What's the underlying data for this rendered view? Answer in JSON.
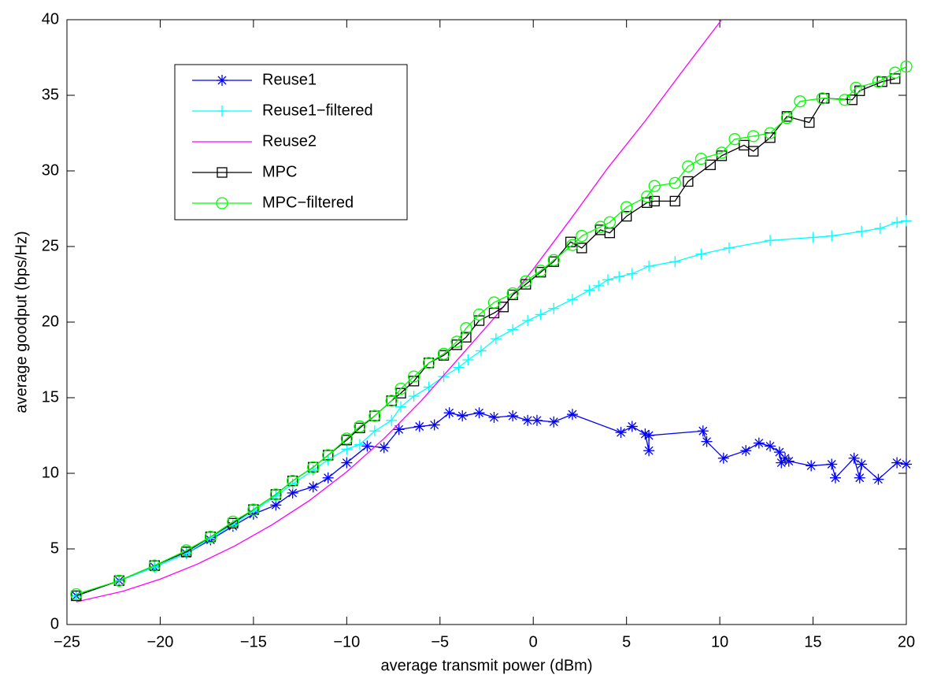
{
  "chart_data": {
    "type": "line",
    "x_label": "average transmit power (dBm)",
    "y_label": "average goodput (bps/Hz)",
    "xlim": [
      -25,
      20
    ],
    "ylim": [
      0,
      40
    ],
    "xticks": [
      {
        "value": -25,
        "label": "−25"
      },
      {
        "value": -20,
        "label": "−20"
      },
      {
        "value": -15,
        "label": "−15"
      },
      {
        "value": -10,
        "label": "−10"
      },
      {
        "value": -5,
        "label": "−5"
      },
      0,
      5,
      10,
      15,
      20
    ],
    "yticks": [
      0,
      5,
      10,
      15,
      20,
      25,
      30,
      35,
      40
    ],
    "grid": false,
    "legend": "upper left",
    "series": [
      {
        "name": "Reuse1",
        "color": "#0000ff",
        "marker": "star",
        "x": [
          -24.5,
          -22.2,
          -20.3,
          -18.6,
          -17.3,
          -16.1,
          -15,
          -13.8,
          -12.9,
          -11.8,
          -11,
          -10,
          -8.9,
          -8,
          -7.2,
          -6.1,
          -5.3,
          -4.5,
          -3.8,
          -2.9,
          -2.1,
          -1.1,
          -0.3,
          0.2,
          1.1,
          2.1,
          4.7,
          5.3,
          6.0,
          6.2,
          6.2,
          9.1,
          9.3,
          10.2,
          11.4,
          12.1,
          12.7,
          13.2,
          13.3,
          13.5,
          13.7,
          14.9,
          16.0,
          16.2,
          17.2,
          17.5,
          17.6,
          18.5,
          19.5,
          20
        ],
        "values": [
          1.9,
          2.9,
          3.8,
          4.7,
          5.6,
          6.5,
          7.3,
          7.9,
          8.7,
          9.1,
          9.7,
          10.7,
          11.8,
          11.7,
          12.9,
          13.1,
          13.2,
          14.0,
          13.8,
          14.0,
          13.7,
          13.8,
          13.5,
          13.5,
          13.4,
          13.9,
          12.7,
          13.1,
          12.6,
          11.5,
          12.5,
          12.8,
          12.1,
          11.0,
          11.5,
          12.0,
          11.8,
          11.4,
          10.7,
          11.0,
          10.8,
          10.5,
          10.6,
          9.7,
          11.0,
          9.7,
          10.6,
          9.6,
          10.7,
          10.6
        ]
      },
      {
        "name": "Reuse1−filtered",
        "color": "#00ffff",
        "marker": "plus",
        "x": [
          -24.5,
          -22.2,
          -20.3,
          -18.6,
          -17.3,
          -16.1,
          -15,
          -13.8,
          -12.9,
          -11.8,
          -11,
          -10,
          -9.3,
          -8.5,
          -7.6,
          -7.1,
          -6.4,
          -5.6,
          -4.8,
          -4,
          -3.5,
          -2.8,
          -2.0,
          -1.1,
          -0.3,
          0.4,
          1.1,
          2.1,
          3,
          3.5,
          4,
          4.6,
          5.3,
          6.2,
          7.6,
          9,
          10.5,
          12.7,
          15,
          16,
          17.6,
          18.6,
          19.5,
          20
        ],
        "values": [
          1.9,
          2.9,
          3.8,
          4.7,
          5.7,
          6.6,
          7.5,
          8.5,
          9.3,
          10.2,
          10.9,
          11.6,
          11.9,
          12.8,
          13.5,
          14.4,
          15.1,
          15.7,
          16.4,
          17.0,
          17.5,
          18.1,
          18.9,
          19.5,
          20.1,
          20.5,
          20.9,
          21.5,
          22.1,
          22.4,
          22.8,
          23.0,
          23.2,
          23.7,
          24.0,
          24.5,
          24.9,
          25.4,
          25.6,
          25.7,
          26.0,
          26.2,
          26.6,
          26.7
        ]
      },
      {
        "name": "Reuse2",
        "color": "#ff00ff",
        "marker": "none",
        "x": [
          -24.5,
          -22,
          -20,
          -18,
          -16,
          -14,
          -12,
          -10,
          -8,
          -6,
          -4,
          -2,
          0,
          2,
          4,
          6,
          8,
          10.1
        ],
        "values": [
          1.5,
          2.2,
          3.0,
          4.0,
          5.2,
          6.6,
          8.2,
          10.1,
          12.3,
          14.8,
          17.6,
          20.4,
          23.5,
          26.8,
          30.2,
          33.3,
          36.6,
          40
        ]
      },
      {
        "name": "MPC",
        "color": "#000000",
        "marker": "square",
        "x": [
          -24.5,
          -22.2,
          -20.3,
          -18.6,
          -17.3,
          -16.1,
          -15,
          -13.8,
          -12.9,
          -11.8,
          -11,
          -10,
          -9.3,
          -8.5,
          -7.6,
          -7.1,
          -6.4,
          -5.6,
          -4.8,
          -4.1,
          -3.6,
          -2.9,
          -2.1,
          -1.6,
          -1.1,
          -0.4,
          0.4,
          1.1,
          2.0,
          2.6,
          3.6,
          4.1,
          5,
          6.1,
          6.5,
          7.6,
          8.3,
          9.5,
          10.1,
          11.3,
          11.8,
          12.7,
          13.6,
          14.8,
          15.6,
          17.1,
          17.5,
          18.7,
          19.4
        ],
        "values": [
          1.9,
          2.9,
          3.9,
          4.8,
          5.8,
          6.7,
          7.6,
          8.6,
          9.5,
          10.4,
          11.2,
          12.2,
          13.0,
          13.8,
          14.8,
          15.3,
          16.1,
          17.3,
          17.8,
          18.5,
          19.0,
          20.1,
          20.6,
          21.0,
          21.8,
          22.5,
          23.3,
          24.0,
          25.3,
          24.9,
          26.1,
          25.9,
          27.0,
          27.9,
          28.0,
          28.0,
          29.3,
          30.4,
          31.0,
          31.7,
          31.3,
          32.2,
          33.6,
          33.2,
          34.8,
          34.7,
          35.3,
          35.9,
          36.1
        ]
      },
      {
        "name": "MPC−filtered",
        "color": "#00ff00",
        "marker": "circle",
        "x": [
          -24.5,
          -22.2,
          -20.3,
          -18.6,
          -17.3,
          -16.1,
          -15,
          -13.8,
          -12.9,
          -11.8,
          -11,
          -10,
          -9.3,
          -8.5,
          -7.6,
          -7.1,
          -6.4,
          -5.6,
          -4.8,
          -4.1,
          -3.6,
          -2.9,
          -2.1,
          -1.1,
          -0.4,
          0.4,
          1.1,
          2.1,
          2.6,
          3.6,
          4.1,
          5,
          6.1,
          6.5,
          7.6,
          8.3,
          9.0,
          10.1,
          10.8,
          11.8,
          12.7,
          13.6,
          14.3,
          15.5,
          16.7,
          17.3,
          18.5,
          19.4,
          20
        ],
        "values": [
          2.0,
          2.9,
          3.9,
          4.9,
          5.8,
          6.8,
          7.6,
          8.6,
          9.5,
          10.4,
          11.2,
          12.3,
          13.1,
          13.8,
          14.8,
          15.6,
          16.4,
          17.3,
          17.9,
          18.7,
          19.6,
          20.5,
          21.3,
          21.9,
          22.7,
          23.4,
          24.1,
          25.1,
          25.7,
          26.3,
          26.6,
          27.6,
          28.3,
          29.0,
          29.2,
          30.3,
          30.8,
          31.2,
          32.1,
          32.3,
          32.5,
          33.5,
          34.6,
          34.8,
          34.7,
          35.5,
          35.9,
          36.5,
          36.9
        ]
      }
    ]
  }
}
